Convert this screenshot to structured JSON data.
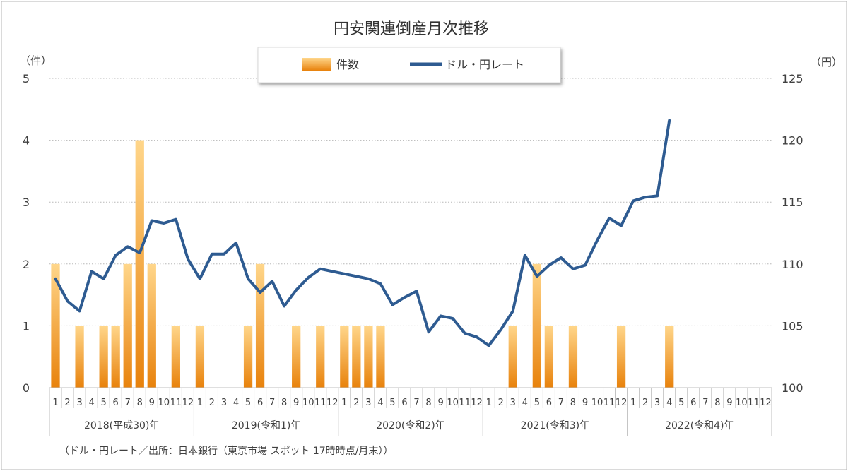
{
  "chart_data": {
    "type": "bar-line combo",
    "title": "円安関連倒産月次推移",
    "left_axis": {
      "unit": "（件）",
      "ticks": [
        "0",
        "1",
        "2",
        "3",
        "4",
        "5"
      ],
      "range": [
        0,
        5
      ]
    },
    "right_axis": {
      "unit": "（円）",
      "ticks": [
        "100",
        "105",
        "110",
        "115",
        "120",
        "125"
      ],
      "range": [
        100,
        125
      ]
    },
    "legend": [
      {
        "name": "件数",
        "type": "bar"
      },
      {
        "name": "ドル・円レート",
        "type": "line"
      }
    ],
    "grid": true,
    "years": [
      {
        "label": "2018(平成30)年",
        "months": [
          "1",
          "2",
          "3",
          "4",
          "5",
          "6",
          "7",
          "8",
          "9",
          "10",
          "11",
          "12"
        ]
      },
      {
        "label": "2019(令和1)年",
        "months": [
          "1",
          "2",
          "3",
          "4",
          "5",
          "6",
          "7",
          "8",
          "9",
          "10",
          "11",
          "12"
        ]
      },
      {
        "label": "2020(令和2)年",
        "months": [
          "1",
          "2",
          "3",
          "4",
          "5",
          "6",
          "7",
          "8",
          "9",
          "10",
          "11",
          "12"
        ]
      },
      {
        "label": "2021(令和3)年",
        "months": [
          "1",
          "2",
          "3",
          "4",
          "5",
          "6",
          "7",
          "8",
          "9",
          "10",
          "11",
          "12"
        ]
      },
      {
        "label": "2022(令和4)年",
        "months": [
          "1",
          "2",
          "3",
          "4",
          "5",
          "6",
          "7",
          "8",
          "9",
          "10",
          "11",
          "12"
        ]
      }
    ],
    "series": [
      {
        "name": "件数",
        "axis": "left",
        "values": [
          2,
          0,
          1,
          0,
          1,
          1,
          2,
          4,
          2,
          0,
          1,
          0,
          1,
          0,
          0,
          0,
          1,
          2,
          0,
          0,
          1,
          0,
          1,
          0,
          1,
          1,
          1,
          1,
          0,
          0,
          0,
          0,
          0,
          0,
          0,
          0,
          0,
          0,
          1,
          0,
          2,
          1,
          0,
          1,
          0,
          0,
          0,
          1,
          0,
          0,
          0,
          1,
          null,
          null,
          null,
          null,
          null,
          null,
          null,
          null
        ]
      },
      {
        "name": "ドル・円レート",
        "axis": "right",
        "values": [
          108.8,
          107.0,
          106.2,
          109.4,
          108.8,
          110.7,
          111.4,
          110.9,
          113.5,
          113.3,
          113.6,
          110.4,
          108.8,
          110.8,
          110.8,
          111.7,
          108.8,
          107.7,
          108.6,
          106.6,
          107.9,
          108.9,
          109.6,
          109.4,
          109.2,
          109.0,
          108.8,
          108.4,
          106.7,
          107.3,
          107.8,
          104.5,
          105.8,
          105.6,
          104.4,
          104.1,
          103.4,
          104.7,
          106.2,
          110.7,
          109.0,
          109.9,
          110.5,
          109.6,
          109.9,
          111.9,
          113.7,
          113.1,
          115.1,
          115.4,
          115.5,
          121.6,
          null,
          null,
          null,
          null,
          null,
          null,
          null,
          null
        ]
      }
    ],
    "source": "（ドル・円レート／出所：日本銀行（東京市場 スポット 17時時点/月末））"
  }
}
